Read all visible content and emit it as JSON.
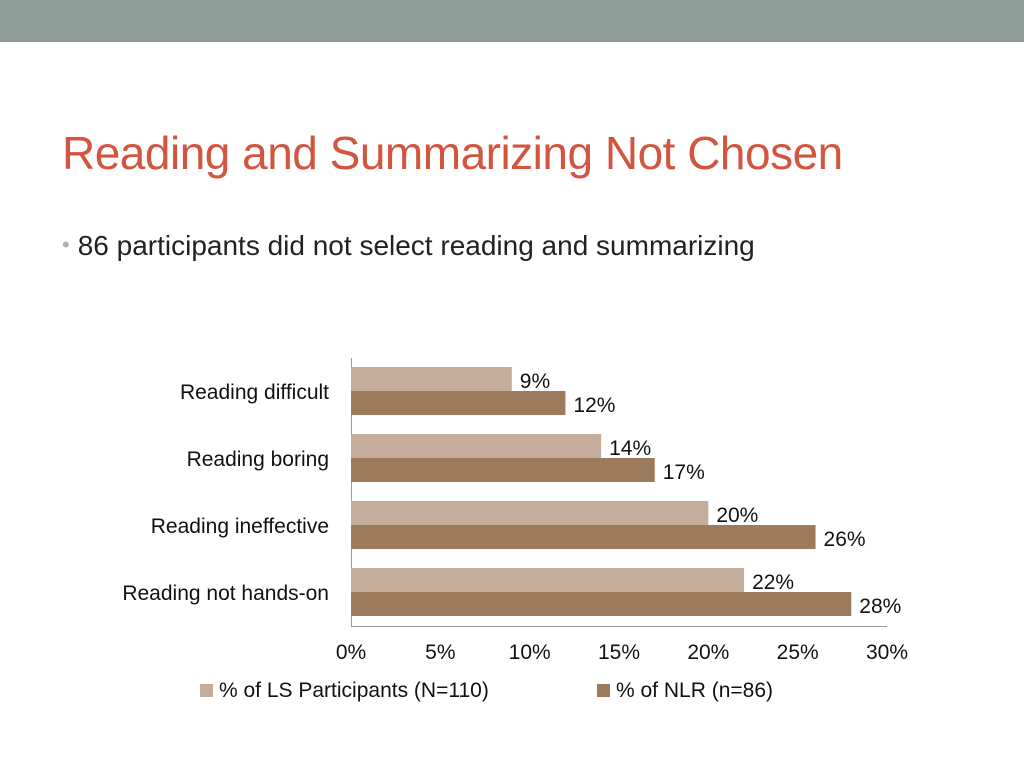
{
  "slide": {
    "title": "Reading and Summarizing Not Chosen",
    "bullet": "86 participants did not select reading and summarizing"
  },
  "colors": {
    "band": "#8f9e98",
    "title": "#d2553f",
    "series_light": "#c4ae9b",
    "series_dark": "#9b7b5c"
  },
  "chart_data": {
    "type": "bar",
    "orientation": "horizontal",
    "title": "",
    "xlabel": "",
    "ylabel": "",
    "categories": [
      "Reading difficult",
      "Reading boring",
      "Reading ineffective",
      "Reading not hands-on"
    ],
    "series": [
      {
        "name": "% of LS Participants (N=110)",
        "values": [
          9,
          14,
          20,
          22
        ],
        "labels": [
          "9%",
          "14%",
          "20%",
          "22%"
        ],
        "color": "#c4ae9b"
      },
      {
        "name": "% of NLR (n=86)",
        "values": [
          12,
          17,
          26,
          28
        ],
        "labels": [
          "12%",
          "17%",
          "26%",
          "28%"
        ],
        "color": "#9b7b5c"
      }
    ],
    "xlim": [
      0,
      30
    ],
    "xticks": [
      0,
      5,
      10,
      15,
      20,
      25,
      30
    ],
    "xtick_labels": [
      "0%",
      "5%",
      "10%",
      "15%",
      "20%",
      "25%",
      "30%"
    ],
    "grid": false,
    "legend": "bottom"
  }
}
